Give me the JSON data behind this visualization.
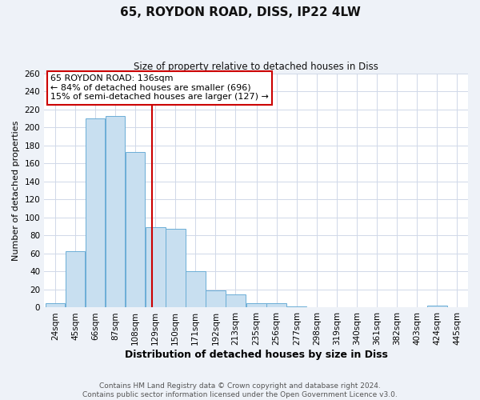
{
  "title": "65, ROYDON ROAD, DISS, IP22 4LW",
  "subtitle": "Size of property relative to detached houses in Diss",
  "xlabel": "Distribution of detached houses by size in Diss",
  "ylabel": "Number of detached properties",
  "bar_color": "#c8dff0",
  "bar_edge_color": "#6baed6",
  "bin_labels": [
    "24sqm",
    "45sqm",
    "66sqm",
    "87sqm",
    "108sqm",
    "129sqm",
    "150sqm",
    "171sqm",
    "192sqm",
    "213sqm",
    "235sqm",
    "256sqm",
    "277sqm",
    "298sqm",
    "319sqm",
    "340sqm",
    "361sqm",
    "382sqm",
    "403sqm",
    "424sqm",
    "445sqm"
  ],
  "bar_heights": [
    5,
    63,
    210,
    213,
    173,
    89,
    87,
    40,
    19,
    15,
    5,
    5,
    1,
    0,
    0,
    0,
    0,
    0,
    0,
    2,
    0
  ],
  "bin_edges": [
    24,
    45,
    66,
    87,
    108,
    129,
    150,
    171,
    192,
    213,
    235,
    256,
    277,
    298,
    319,
    340,
    361,
    382,
    403,
    424,
    445
  ],
  "bin_width": 21,
  "ylim": [
    0,
    260
  ],
  "yticks": [
    0,
    20,
    40,
    60,
    80,
    100,
    120,
    140,
    160,
    180,
    200,
    220,
    240,
    260
  ],
  "property_line_x": 136,
  "property_line_color": "#cc0000",
  "annotation_line1": "65 ROYDON ROAD: 136sqm",
  "annotation_line2": "← 84% of detached houses are smaller (696)",
  "annotation_line3": "15% of semi-detached houses are larger (127) →",
  "annotation_box_edge_color": "#cc0000",
  "footer_text": "Contains HM Land Registry data © Crown copyright and database right 2024.\nContains public sector information licensed under the Open Government Licence v3.0.",
  "background_color": "#eef2f8",
  "plot_background_color": "#ffffff",
  "grid_color": "#d0d8e8"
}
